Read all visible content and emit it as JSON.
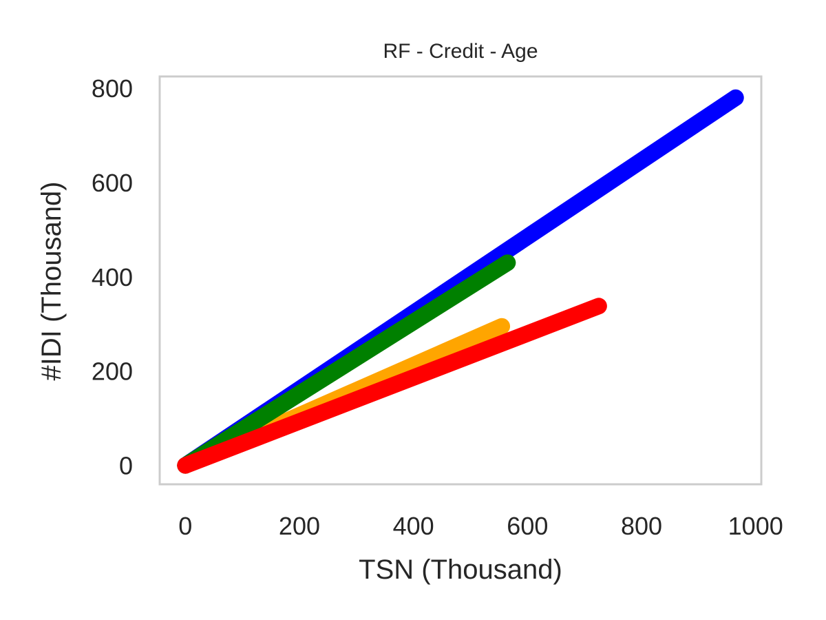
{
  "chart_data": {
    "type": "scatter",
    "title": "RF - Credit - Age",
    "xlabel": "TSN (Thousand)",
    "ylabel": "#IDI (Thousand)",
    "xlim": [
      -45,
      1010
    ],
    "ylim": [
      -40,
      825
    ],
    "xticks": [
      0,
      200,
      400,
      600,
      800,
      1000
    ],
    "yticks": [
      0,
      200,
      400,
      600,
      800
    ],
    "grid": false,
    "frame_color": "#cccccc",
    "series": [
      {
        "color": "#0000ff",
        "start": [
          0,
          0
        ],
        "end": [
          965,
          780
        ]
      },
      {
        "color": "#ffa500",
        "start": [
          0,
          0
        ],
        "end": [
          555,
          295
        ]
      },
      {
        "color": "#008000",
        "start": [
          0,
          0
        ],
        "end": [
          565,
          430
        ]
      },
      {
        "color": "#ff0000",
        "start": [
          0,
          0
        ],
        "end": [
          725,
          338
        ]
      }
    ]
  }
}
